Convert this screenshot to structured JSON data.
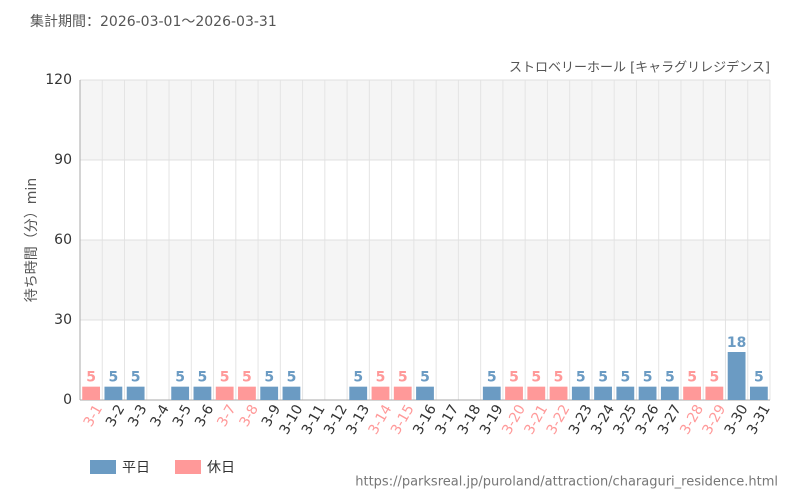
{
  "chart_data": {
    "type": "bar",
    "title": "集計期間：2026-03-01～2026-03-31",
    "subtitle": "ストロベリーホール [キャラグリレジデンス]",
    "y_label": "待ち時間（分）min",
    "source": "https://parksreal.jp/puroland/attraction/charaguri_residence.html",
    "categories": [
      "3-1",
      "3-2",
      "3-3",
      "3-4",
      "3-5",
      "3-6",
      "3-7",
      "3-8",
      "3-9",
      "3-10",
      "3-11",
      "3-12",
      "3-13",
      "3-14",
      "3-15",
      "3-16",
      "3-17",
      "3-18",
      "3-19",
      "3-20",
      "3-21",
      "3-22",
      "3-23",
      "3-24",
      "3-25",
      "3-26",
      "3-27",
      "3-28",
      "3-29",
      "3-30",
      "3-31"
    ],
    "series": [
      {
        "name": "平日",
        "color": "#6b9bc3",
        "values": [
          null,
          5,
          5,
          null,
          5,
          5,
          null,
          null,
          5,
          5,
          null,
          null,
          5,
          null,
          null,
          5,
          null,
          null,
          5,
          null,
          null,
          null,
          5,
          5,
          5,
          5,
          5,
          null,
          null,
          18,
          5
        ]
      },
      {
        "name": "休日",
        "color": "#ff9999",
        "values": [
          5,
          null,
          null,
          null,
          null,
          null,
          5,
          5,
          null,
          null,
          null,
          null,
          null,
          5,
          5,
          null,
          null,
          null,
          null,
          5,
          5,
          5,
          null,
          null,
          null,
          null,
          null,
          5,
          5,
          null,
          null
        ]
      }
    ],
    "ylim": [
      0,
      120
    ],
    "yticks": [
      0,
      30,
      60,
      90,
      120
    ],
    "grid": true
  }
}
